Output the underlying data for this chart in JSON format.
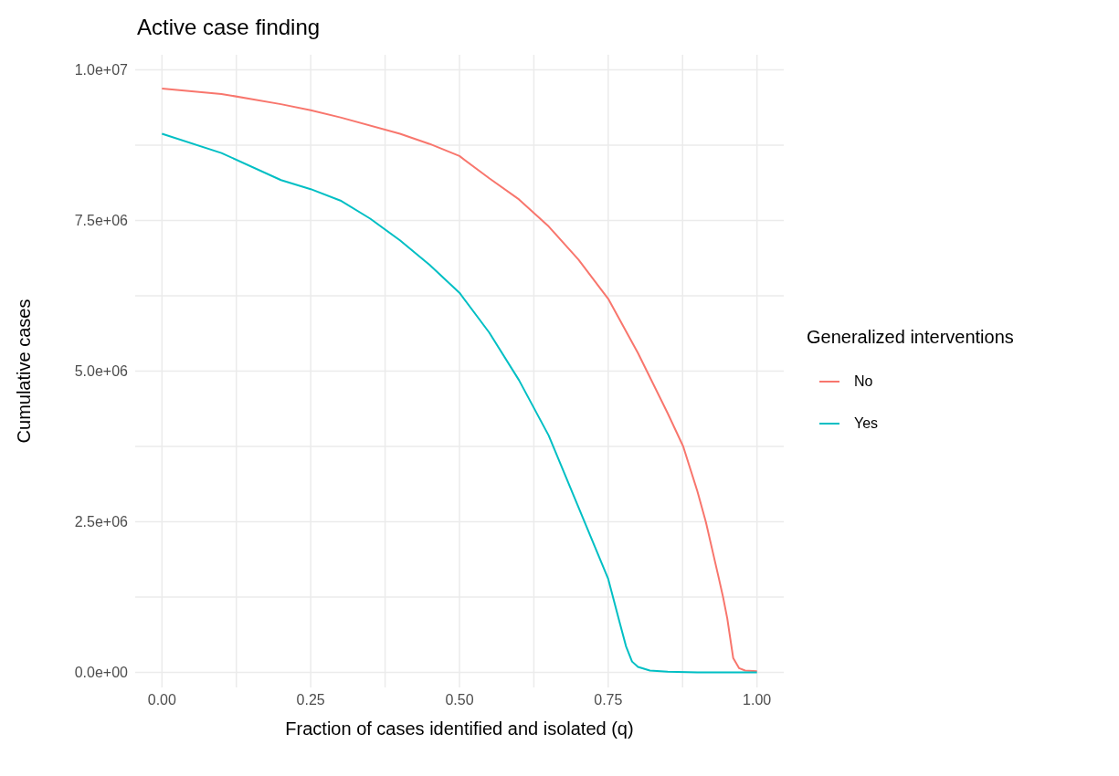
{
  "chart_data": {
    "type": "line",
    "title": "Active case finding",
    "xlabel": "Fraction of cases identified and isolated (q)",
    "ylabel": "Cumulative cases",
    "legend_title": "Generalized interventions",
    "legend": "right",
    "grid": true,
    "marker": "none",
    "line_style": "solid",
    "xlim": [
      -0.045,
      1.045
    ],
    "ylim": [
      -250000,
      10250000
    ],
    "xticks": [
      {
        "value": 0,
        "label": "0.00"
      },
      {
        "value": 0.125,
        "label": null
      },
      {
        "value": 0.25,
        "label": "0.25"
      },
      {
        "value": 0.375,
        "label": null
      },
      {
        "value": 0.5,
        "label": "0.50"
      },
      {
        "value": 0.625,
        "label": null
      },
      {
        "value": 0.75,
        "label": "0.75"
      },
      {
        "value": 0.875,
        "label": null
      },
      {
        "value": 1,
        "label": "1.00"
      }
    ],
    "yticks": [
      {
        "value": 0,
        "label": "0.0e+00"
      },
      {
        "value": 1250000,
        "label": null
      },
      {
        "value": 2500000,
        "label": "2.5e+06"
      },
      {
        "value": 3750000,
        "label": null
      },
      {
        "value": 5000000,
        "label": "5.0e+06"
      },
      {
        "value": 6250000,
        "label": null
      },
      {
        "value": 7500000,
        "label": "7.5e+06"
      },
      {
        "value": 8750000,
        "label": null
      },
      {
        "value": 10000000,
        "label": "1.0e+07"
      }
    ],
    "series": [
      {
        "name": "No",
        "color": "#f8766d",
        "x": [
          0,
          0.1,
          0.2,
          0.25,
          0.3,
          0.4,
          0.45,
          0.5,
          0.55,
          0.6,
          0.65,
          0.7,
          0.75,
          0.8,
          0.85,
          0.876,
          0.9,
          0.914,
          0.935,
          0.943,
          0.95,
          0.96,
          0.97,
          0.98,
          1
        ],
        "values": [
          9690000,
          9600000,
          9430000,
          9330000,
          9210000,
          8940000,
          8770000,
          8570000,
          8200000,
          7850000,
          7400000,
          6850000,
          6200000,
          5300000,
          4300000,
          3750000,
          3000000,
          2500000,
          1600000,
          1250000,
          900000,
          240000,
          70000,
          30000,
          20000
        ]
      },
      {
        "name": "Yes",
        "color": "#00bfc4",
        "x": [
          0,
          0.1,
          0.2,
          0.25,
          0.3,
          0.35,
          0.4,
          0.45,
          0.5,
          0.55,
          0.6,
          0.65,
          0.7,
          0.75,
          0.77,
          0.78,
          0.79,
          0.8,
          0.82,
          0.85,
          0.9,
          1
        ],
        "values": [
          8940000,
          8620000,
          8170000,
          8020000,
          7830000,
          7530000,
          7170000,
          6760000,
          6300000,
          5640000,
          4850000,
          3930000,
          2740000,
          1550000,
          800000,
          430000,
          180000,
          90000,
          30000,
          10000,
          0,
          0
        ]
      }
    ]
  }
}
